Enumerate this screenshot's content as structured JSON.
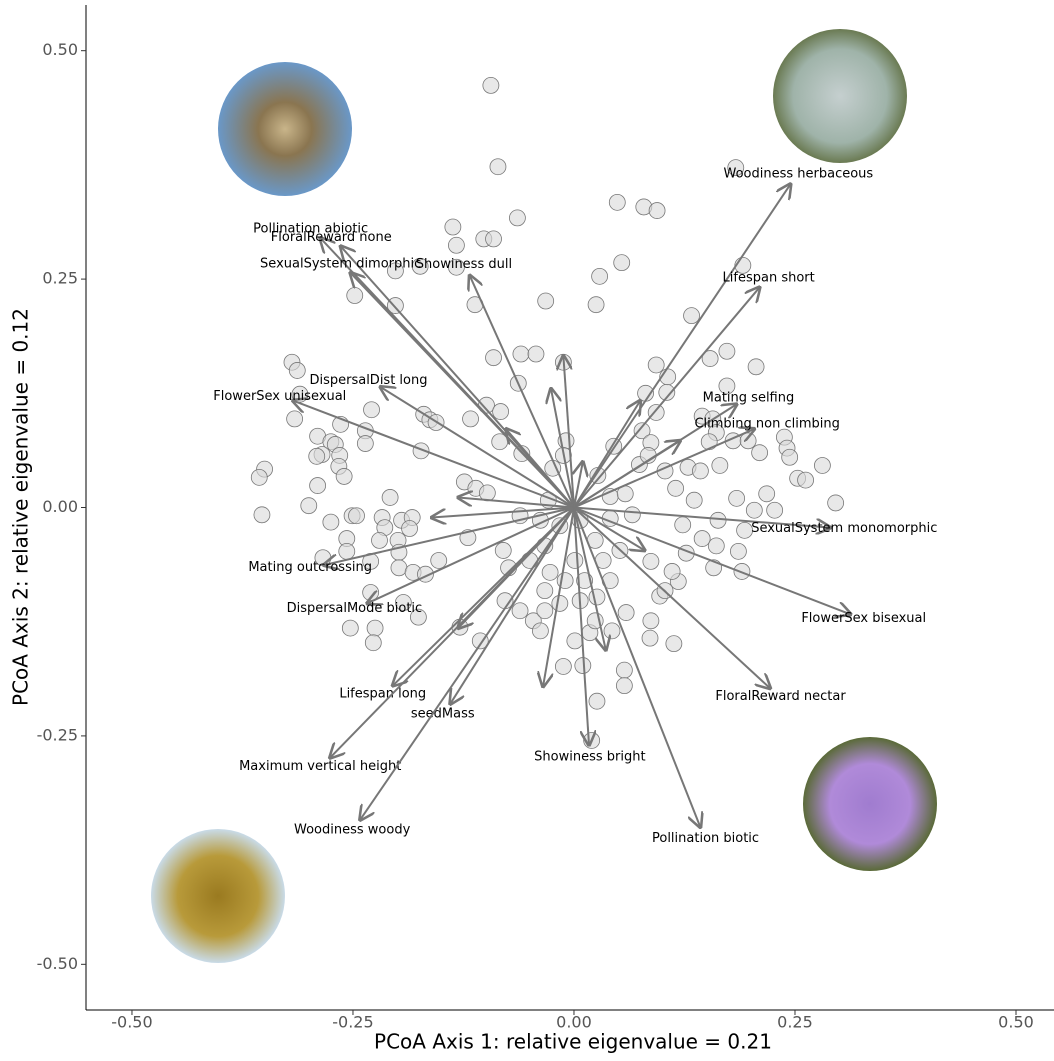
{
  "chart_data": {
    "type": "scatter",
    "x_label": "PCoA Axis 1: relative eigenvalue = 0.21",
    "y_label": "PCoA Axis 2: relative eigenvalue = 0.12",
    "xlim": [
      -0.552,
      0.543
    ],
    "ylim": [
      -0.55,
      0.55
    ],
    "xticks": [
      {
        "value": -0.5,
        "label": "-0.50"
      },
      -0.25,
      {
        "value": 0,
        "label": "0.00"
      },
      0.25,
      {
        "value": 0.5,
        "label": "0.50"
      }
    ],
    "yticks": [
      {
        "value": -0.5,
        "label": "-0.50"
      },
      -0.25,
      {
        "value": 0,
        "label": "0.00"
      },
      0.25,
      {
        "value": 0.5,
        "label": "0.50"
      }
    ],
    "point_color": "#d9d9d9",
    "arrow_color": "#777777",
    "x": [
      -0.094,
      -0.086,
      -0.064,
      -0.137,
      -0.133,
      -0.102,
      -0.091,
      0.049,
      0.079,
      0.094,
      0.183,
      -0.202,
      -0.174,
      -0.133,
      0.029,
      0.054,
      -0.032,
      -0.112,
      0.025,
      -0.248,
      -0.202,
      0.191,
      0.133,
      -0.091,
      -0.06,
      -0.043,
      -0.012,
      0.093,
      0.154,
      0.173,
      0.206,
      -0.063,
      0.106,
      0.081,
      0.105,
      0.173,
      -0.319,
      -0.313,
      -0.31,
      -0.229,
      -0.316,
      -0.17,
      -0.163,
      -0.156,
      -0.117,
      -0.099,
      -0.083,
      0.093,
      0.145,
      -0.264,
      -0.236,
      -0.29,
      -0.275,
      -0.27,
      -0.285,
      -0.291,
      -0.265,
      -0.236,
      -0.173,
      -0.084,
      -0.059,
      -0.009,
      0.077,
      0.087,
      0.157,
      0.161,
      0.153,
      0.18,
      0.197,
      0.21,
      0.238,
      0.241,
      0.244,
      0.281,
      0.253,
      0.262,
      0.296,
      -0.266,
      -0.26,
      -0.35,
      -0.356,
      -0.29,
      -0.3,
      -0.353,
      -0.208,
      -0.124,
      -0.111,
      -0.098,
      -0.029,
      -0.012,
      -0.024,
      -0.275,
      -0.251,
      -0.246,
      -0.217,
      -0.214,
      -0.195,
      -0.183,
      -0.186,
      -0.257,
      -0.257,
      -0.284,
      -0.23,
      -0.23,
      -0.22,
      -0.199,
      -0.198,
      -0.198,
      -0.182,
      -0.168,
      -0.153,
      -0.193,
      -0.225,
      -0.253,
      -0.227,
      -0.176,
      -0.129,
      -0.106,
      -0.12,
      -0.08,
      -0.074,
      -0.078,
      -0.061,
      -0.046,
      -0.033,
      -0.038,
      -0.027,
      -0.016,
      -0.012,
      0.01,
      0.001,
      0.018,
      0.026,
      0.041,
      0.033,
      0.052,
      0.059,
      0.057,
      0.057,
      0.026,
      0.02,
      0.086,
      0.113,
      0.087,
      0.097,
      0.103,
      0.118,
      0.111,
      0.087,
      0.127,
      0.158,
      0.19,
      0.186,
      0.161,
      0.145,
      0.193,
      0.227,
      0.218,
      0.204,
      0.184,
      0.163,
      0.123,
      0.136,
      0.115,
      0.129,
      0.103,
      0.074,
      0.045,
      0.027,
      0.041,
      0.058,
      0.066,
      0.041,
      0.024,
      0.007,
      -0.016,
      -0.038,
      -0.061,
      -0.033,
      -0.05,
      0.001,
      0.012,
      -0.01,
      0.007,
      0.024,
      0.043,
      -0.033,
      0.143,
      0.165,
      0.084
    ],
    "y": [
      0.462,
      0.373,
      0.317,
      0.307,
      0.287,
      0.294,
      0.294,
      0.334,
      0.329,
      0.325,
      0.372,
      0.259,
      0.264,
      0.263,
      0.253,
      0.268,
      0.226,
      0.222,
      0.222,
      0.232,
      0.221,
      0.265,
      0.21,
      0.164,
      0.168,
      0.168,
      0.159,
      0.156,
      0.163,
      0.171,
      0.154,
      0.136,
      0.143,
      0.125,
      0.126,
      0.133,
      0.159,
      0.15,
      0.124,
      0.107,
      0.097,
      0.102,
      0.096,
      0.093,
      0.097,
      0.112,
      0.105,
      0.104,
      0.1,
      0.091,
      0.084,
      0.078,
      0.072,
      0.069,
      0.058,
      0.056,
      0.057,
      0.07,
      0.062,
      0.072,
      0.059,
      0.073,
      0.084,
      0.071,
      0.097,
      0.082,
      0.072,
      0.073,
      0.073,
      0.06,
      0.077,
      0.065,
      0.055,
      0.046,
      0.032,
      0.03,
      0.005,
      0.045,
      0.034,
      0.042,
      0.033,
      0.024,
      0.002,
      -0.008,
      0.011,
      0.028,
      0.021,
      0.016,
      0.008,
      0.057,
      0.043,
      -0.016,
      -0.009,
      -0.009,
      -0.011,
      -0.022,
      -0.014,
      -0.011,
      -0.023,
      -0.034,
      -0.048,
      -0.055,
      -0.059,
      -0.093,
      -0.036,
      -0.036,
      -0.049,
      -0.066,
      -0.071,
      -0.073,
      -0.058,
      -0.104,
      -0.132,
      -0.132,
      -0.148,
      -0.12,
      -0.131,
      -0.146,
      -0.033,
      -0.047,
      -0.066,
      -0.102,
      -0.113,
      -0.124,
      -0.091,
      -0.135,
      -0.071,
      -0.105,
      -0.174,
      -0.173,
      -0.146,
      -0.137,
      -0.098,
      -0.08,
      -0.058,
      -0.047,
      -0.115,
      -0.178,
      -0.195,
      -0.212,
      -0.255,
      -0.143,
      -0.149,
      -0.124,
      -0.097,
      -0.091,
      -0.081,
      -0.07,
      -0.059,
      -0.05,
      -0.066,
      -0.07,
      -0.048,
      -0.042,
      -0.034,
      -0.025,
      -0.003,
      0.015,
      -0.003,
      0.01,
      -0.014,
      -0.019,
      0.008,
      0.021,
      0.044,
      0.04,
      0.047,
      0.067,
      0.035,
      0.012,
      0.015,
      -0.008,
      -0.012,
      -0.036,
      -0.014,
      -0.02,
      -0.014,
      -0.009,
      -0.042,
      -0.058,
      -0.058,
      -0.08,
      -0.08,
      -0.102,
      -0.124,
      -0.135,
      -0.113,
      0.04,
      0.046,
      0.057
    ],
    "arrows": {
      "labels": [
        "Woodiness herbaceous",
        "Lifespan short",
        "Pollination abiotic",
        "FloralReward none",
        "SexualSystem dimorphic",
        "Showiness dull",
        "DispersalDist long",
        "FlowerSex unisexual",
        "Mating selfing",
        "Climbing non climbing",
        "SexualSystem monomorphic",
        "FlowerSex bisexual",
        "FloralReward nectar",
        "Pollination biotic",
        "Showiness bright",
        "seedMass",
        "Lifespan long",
        "Maximum vertical height",
        "Woodiness woody",
        "Mating outcrossing",
        "DispersalMode biotic",
        null,
        null,
        null,
        null,
        null,
        null,
        null,
        null,
        null,
        null,
        null,
        null
      ],
      "x": [
        0.245,
        0.21,
        -0.287,
        -0.264,
        -0.253,
        -0.118,
        -0.219,
        -0.318,
        0.184,
        0.204,
        0.29,
        0.313,
        0.222,
        0.143,
        0.017,
        -0.14,
        -0.205,
        -0.276,
        -0.242,
        -0.283,
        -0.234,
        -0.012,
        -0.026,
        -0.077,
        -0.131,
        -0.161,
        -0.131,
        -0.035,
        0.036,
        0.08,
        0.12,
        0.075,
        0.01
      ],
      "y": [
        0.354,
        0.241,
        0.295,
        0.286,
        0.257,
        0.254,
        0.132,
        0.117,
        0.113,
        0.086,
        -0.022,
        -0.117,
        -0.198,
        -0.35,
        -0.26,
        -0.215,
        -0.195,
        -0.274,
        -0.342,
        -0.063,
        -0.105,
        0.166,
        0.13,
        0.086,
        0.011,
        -0.011,
        -0.132,
        -0.196,
        -0.156,
        -0.047,
        0.073,
        0.117,
        0.05
      ]
    }
  }
}
